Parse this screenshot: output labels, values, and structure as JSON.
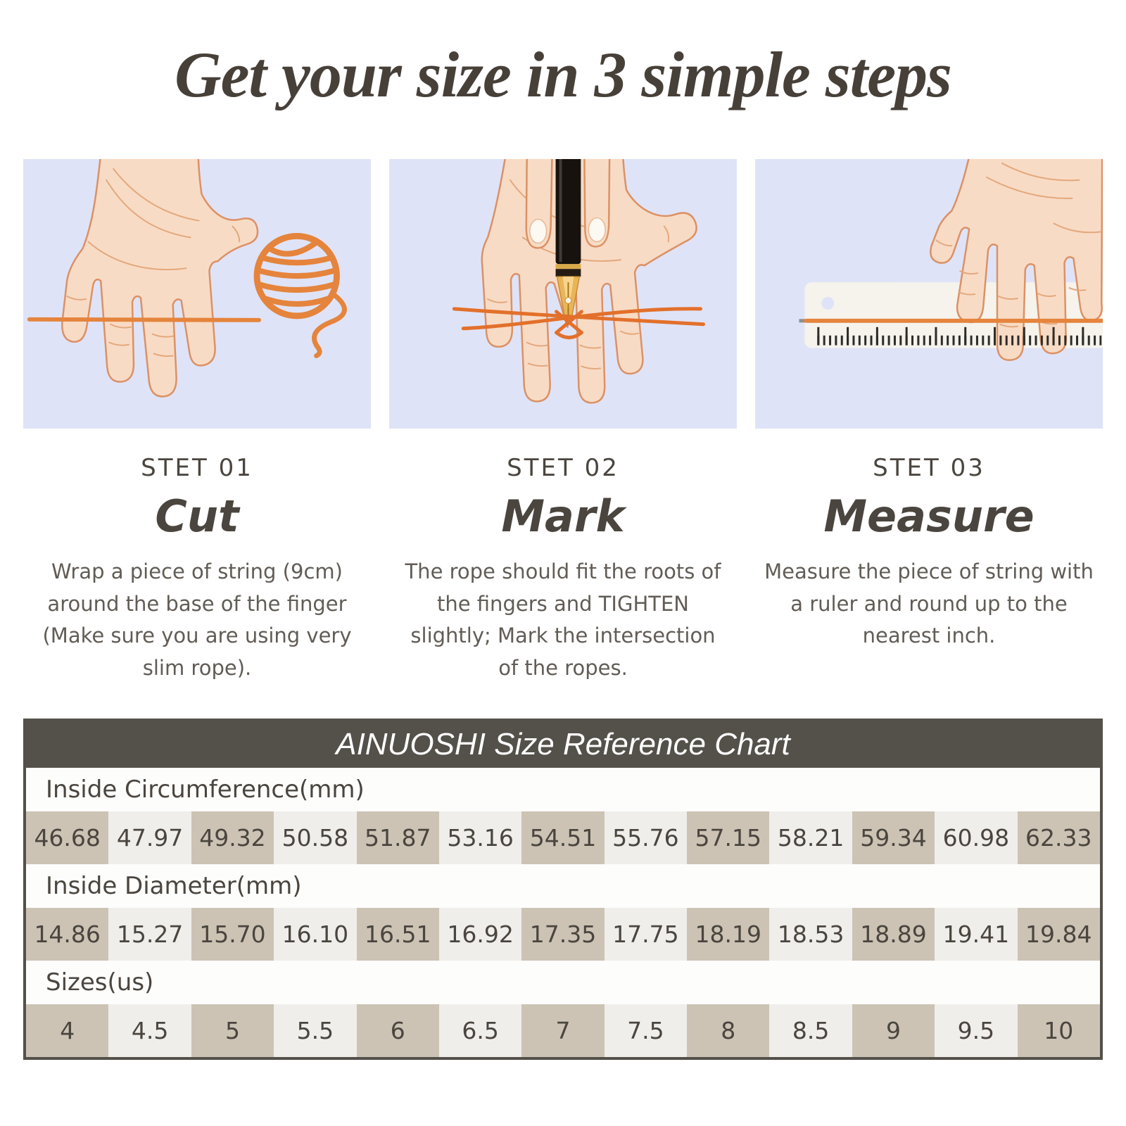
{
  "title": "Get your size in 3 simple steps",
  "steps": [
    {
      "label": "STET 01",
      "name": "Cut",
      "description": "Wrap a piece of string (9cm) around the base of the finger (Make sure you are using very slim rope).",
      "icon": "hand-with-string-and-yarn-ball-illustration"
    },
    {
      "label": "STET 02",
      "name": "Mark",
      "description": "The rope should fit the roots of the fingers and TIGHTEN slightly; Mark the intersection of the ropes.",
      "icon": "hand-with-pen-marking-string-illustration"
    },
    {
      "label": "STET 03",
      "name": "Measure",
      "description": "Measure the piece of string with a ruler and round up to the nearest inch.",
      "icon": "hand-with-ruler-and-string-illustration"
    }
  ],
  "size_chart": {
    "title": "AINUOSHI Size Reference Chart",
    "rows": [
      {
        "label": "Inside Circumference(mm)",
        "values": [
          "46.68",
          "47.97",
          "49.32",
          "50.58",
          "51.87",
          "53.16",
          "54.51",
          "55.76",
          "57.15",
          "58.21",
          "59.34",
          "60.98",
          "62.33"
        ]
      },
      {
        "label": "Inside Diameter(mm)",
        "values": [
          "14.86",
          "15.27",
          "15.70",
          "16.10",
          "16.51",
          "16.92",
          "17.35",
          "17.75",
          "18.19",
          "18.53",
          "18.89",
          "19.41",
          "19.84"
        ]
      },
      {
        "label": "Sizes(us)",
        "values": [
          "4",
          "4.5",
          "5",
          "5.5",
          "6",
          "6.5",
          "7",
          "7.5",
          "8",
          "8.5",
          "9",
          "9.5",
          "10"
        ]
      }
    ]
  },
  "chart_data": {
    "type": "table",
    "title": "AINUOSHI Size Reference Chart",
    "rows": [
      {
        "label": "Inside Circumference(mm)",
        "values": [
          46.68,
          47.97,
          49.32,
          50.58,
          51.87,
          53.16,
          54.51,
          55.76,
          57.15,
          58.21,
          59.34,
          60.98,
          62.33
        ]
      },
      {
        "label": "Inside Diameter(mm)",
        "values": [
          14.86,
          15.27,
          15.7,
          16.1,
          16.51,
          16.92,
          17.35,
          17.75,
          18.19,
          18.53,
          18.89,
          19.41,
          19.84
        ]
      },
      {
        "label": "Sizes(us)",
        "values": [
          4,
          4.5,
          5,
          5.5,
          6,
          6.5,
          7,
          7.5,
          8,
          8.5,
          9,
          9.5,
          10
        ]
      }
    ]
  },
  "colors": {
    "accent_orange": "#e5843c",
    "panel_bg": "#dfe3f7",
    "header_bg": "#54504a",
    "cell_beige": "#ccc3b5",
    "cell_light": "#f0eeeb",
    "text_dark": "#4a453e",
    "text_muted": "#615c55",
    "skin": "#f8dbc5",
    "skin_outline": "#db9165"
  }
}
